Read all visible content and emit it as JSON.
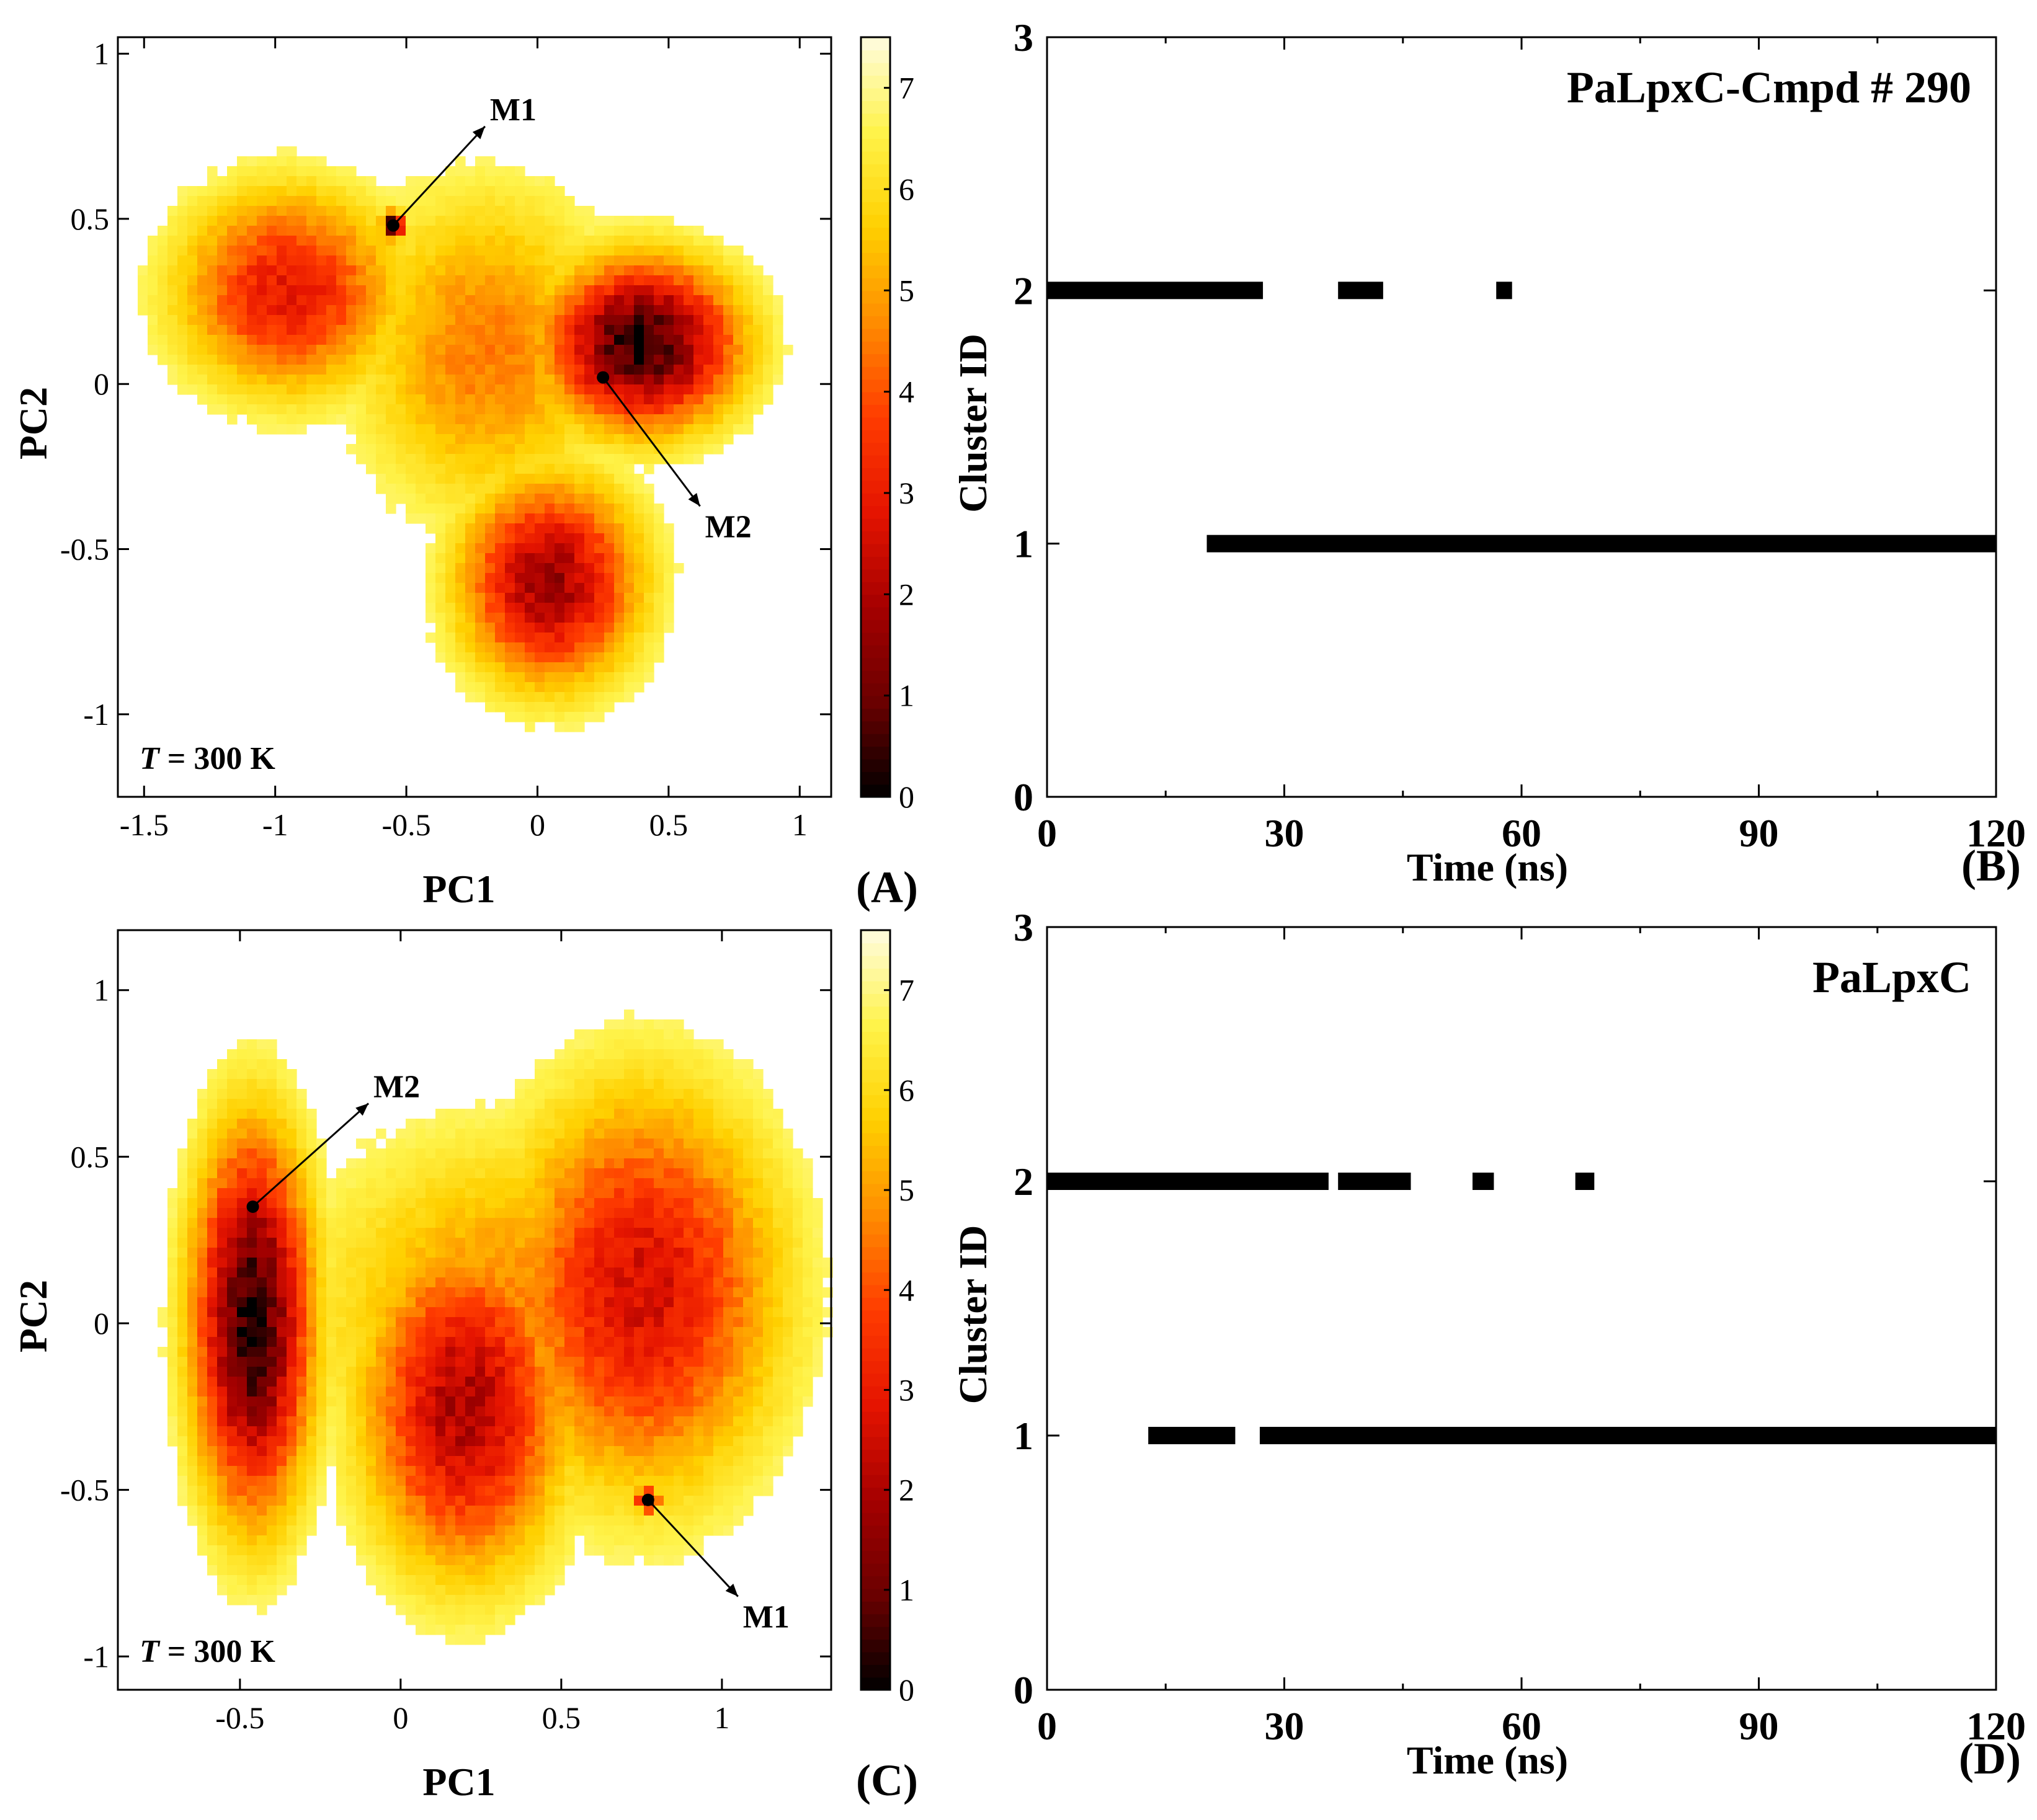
{
  "colors": {
    "scale": [
      "#000000",
      "#6a0000",
      "#a50000",
      "#e51400",
      "#ff3c00",
      "#ff8c00",
      "#ffd000",
      "#fff34a",
      "#fffce0"
    ],
    "bar": "#000000",
    "axis": "#000000"
  },
  "chart_data": [
    {
      "id": "A",
      "type": "heatmap",
      "panel_label": "(A)",
      "xlabel": "PC1",
      "ylabel": "PC2",
      "xlim": [
        -1.6,
        1.12
      ],
      "ylim": [
        -1.25,
        1.05
      ],
      "xticks": [
        -1.5,
        -1,
        -0.5,
        0,
        0.5,
        1
      ],
      "xtick_labels": [
        "-1.5",
        "-1",
        "-0.5",
        "0",
        "0.5",
        "1"
      ],
      "yticks": [
        -1,
        -0.5,
        0,
        0.5,
        1
      ],
      "ytick_labels": [
        "-1",
        "-0.5",
        "0",
        "0.5",
        "1"
      ],
      "temperature_label": {
        "var": "T",
        "rest": " = 300 K"
      },
      "colorbar": {
        "min": 0,
        "max": 7.5,
        "ticks": [
          0,
          1,
          2,
          3,
          4,
          5,
          6,
          7
        ],
        "tick_labels": [
          "0",
          "1",
          "2",
          "3",
          "4",
          "5",
          "6",
          "7"
        ]
      },
      "basins": [
        {
          "x": -0.95,
          "y": 0.28,
          "sx": 0.3,
          "sy": 0.22,
          "depth": 4.6
        },
        {
          "x": 0.4,
          "y": 0.12,
          "sx": 0.26,
          "sy": 0.18,
          "depth": 7.2
        },
        {
          "x": 0.05,
          "y": -0.6,
          "sx": 0.24,
          "sy": 0.22,
          "depth": 5.8
        },
        {
          "x": -0.2,
          "y": 0.1,
          "sx": 0.35,
          "sy": 0.35,
          "depth": 3.0
        },
        {
          "x": -0.55,
          "y": 0.48,
          "sx": 0.03,
          "sy": 0.03,
          "depth": 7.5
        }
      ],
      "annotations": [
        {
          "label": "M1",
          "x": -0.55,
          "y": 0.48,
          "tx": -0.2,
          "ty": 0.78
        },
        {
          "label": "M2",
          "x": 0.25,
          "y": 0.02,
          "tx": 0.62,
          "ty": -0.37
        }
      ]
    },
    {
      "id": "B",
      "type": "bar",
      "panel_label": "(B)",
      "title": "PaLpxC-Cmpd # 290",
      "xlabel": "Time (ns)",
      "ylabel": "Cluster ID",
      "xlim": [
        0,
        120
      ],
      "ylim": [
        0,
        3
      ],
      "xticks": [
        0,
        30,
        60,
        90,
        120
      ],
      "xtick_labels": [
        "0",
        "30",
        "60",
        "90",
        "120"
      ],
      "yticks": [
        0,
        1,
        2,
        3
      ],
      "ytick_labels": [
        "0",
        "1",
        "2",
        "3"
      ],
      "segments": [
        {
          "cluster": 2,
          "start": 0,
          "end": 27.3
        },
        {
          "cluster": 2,
          "start": 36.8,
          "end": 42.5
        },
        {
          "cluster": 2,
          "start": 56.8,
          "end": 58.8
        },
        {
          "cluster": 1,
          "start": 20.2,
          "end": 120
        }
      ]
    },
    {
      "id": "C",
      "type": "heatmap",
      "panel_label": "(C)",
      "xlabel": "PC1",
      "ylabel": "PC2",
      "xlim": [
        -0.88,
        1.34
      ],
      "ylim": [
        -1.1,
        1.18
      ],
      "xticks": [
        -0.5,
        0,
        0.5,
        1
      ],
      "xtick_labels": [
        "-0.5",
        "0",
        "0.5",
        "1"
      ],
      "yticks": [
        -1,
        -0.5,
        0,
        0.5,
        1
      ],
      "ytick_labels": [
        "-1",
        "-0.5",
        "0",
        "0.5",
        "1"
      ],
      "temperature_label": {
        "var": "T",
        "rest": " = 300 K"
      },
      "colorbar": {
        "min": 0,
        "max": 7.6,
        "ticks": [
          0,
          1,
          2,
          3,
          4,
          5,
          6,
          7
        ],
        "tick_labels": [
          "0",
          "1",
          "2",
          "3",
          "4",
          "5",
          "6",
          "7"
        ]
      },
      "basins": [
        {
          "x": -0.46,
          "y": 0.0,
          "sx": 0.13,
          "sy": 0.4,
          "depth": 7.4
        },
        {
          "x": 0.2,
          "y": -0.25,
          "sx": 0.22,
          "sy": 0.35,
          "depth": 5.6
        },
        {
          "x": 0.75,
          "y": 0.1,
          "sx": 0.3,
          "sy": 0.42,
          "depth": 5.0
        },
        {
          "x": 0.35,
          "y": 0.0,
          "sx": 0.45,
          "sy": 0.4,
          "depth": 3.0
        },
        {
          "x": 0.77,
          "y": -0.53,
          "sx": 0.025,
          "sy": 0.025,
          "depth": 7.5
        }
      ],
      "annotations": [
        {
          "label": "M2",
          "x": -0.46,
          "y": 0.35,
          "tx": -0.1,
          "ty": 0.66
        },
        {
          "label": "M1",
          "x": 0.77,
          "y": -0.53,
          "tx": 1.05,
          "ty": -0.82
        }
      ]
    },
    {
      "id": "D",
      "type": "bar",
      "panel_label": "(D)",
      "title": "PaLpxC",
      "xlabel": "Time (ns)",
      "ylabel": "Cluster ID",
      "xlim": [
        0,
        120
      ],
      "ylim": [
        0,
        3
      ],
      "xticks": [
        0,
        30,
        60,
        90,
        120
      ],
      "xtick_labels": [
        "0",
        "30",
        "60",
        "90",
        "120"
      ],
      "yticks": [
        0,
        1,
        2,
        3
      ],
      "ytick_labels": [
        "0",
        "1",
        "2",
        "3"
      ],
      "segments": [
        {
          "cluster": 2,
          "start": 0,
          "end": 35.6
        },
        {
          "cluster": 2,
          "start": 36.8,
          "end": 46.0
        },
        {
          "cluster": 2,
          "start": 53.8,
          "end": 56.5
        },
        {
          "cluster": 2,
          "start": 66.8,
          "end": 69.2
        },
        {
          "cluster": 1,
          "start": 12.8,
          "end": 23.8
        },
        {
          "cluster": 1,
          "start": 26.9,
          "end": 120
        }
      ]
    }
  ]
}
